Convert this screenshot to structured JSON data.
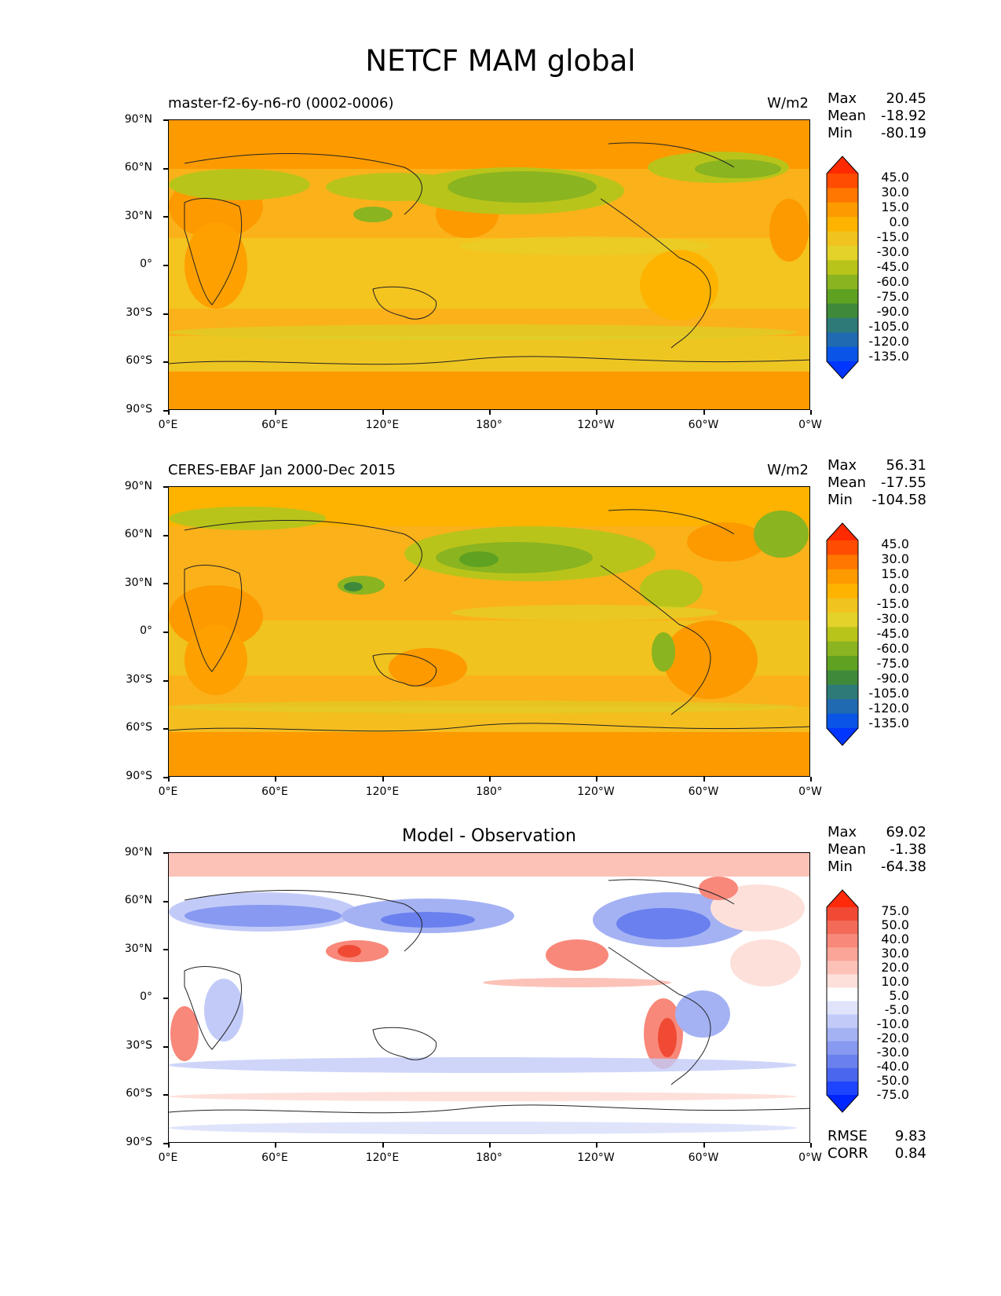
{
  "figure": {
    "title": "NETCF MAM global"
  },
  "axes": {
    "y_ticks": [
      "90°N",
      "60°N",
      "30°N",
      "0°",
      "30°S",
      "60°S",
      "90°S"
    ],
    "x_ticks": [
      "0°E",
      "60°E",
      "120°E",
      "180°",
      "120°W",
      "60°W",
      "0°W"
    ]
  },
  "panels": [
    {
      "title": "master-f2-6y-n6-r0 (0002-0006)",
      "units": "W/m2",
      "stats": {
        "max_label": "Max",
        "max": "20.45",
        "mean_label": "Mean",
        "mean": "-18.92",
        "min_label": "Min",
        "min": "-80.19"
      },
      "colorbar": {
        "labels": [
          "45.0",
          "30.0",
          "15.0",
          "0.0",
          "-15.0",
          "-30.0",
          "-45.0",
          "-60.0",
          "-75.0",
          "-90.0",
          "-105.0",
          "-120.0",
          "-135.0"
        ],
        "colors": [
          "#ff2a00",
          "#ff4c00",
          "#ff7600",
          "#fd9a00",
          "#fdb300",
          "#f0c31e",
          "#e2d22a",
          "#b9c41a",
          "#8ab420",
          "#5fa222",
          "#3e8a3a",
          "#2e7a78",
          "#1f6ab0",
          "#0a55e8",
          "#0036ff"
        ]
      }
    },
    {
      "title": "CERES-EBAF Jan 2000-Dec 2015",
      "units": "W/m2",
      "stats": {
        "max_label": "Max",
        "max": "56.31",
        "mean_label": "Mean",
        "mean": "-17.55",
        "min_label": "Min",
        "min": "-104.58"
      },
      "colorbar": {
        "labels": [
          "45.0",
          "30.0",
          "15.0",
          "0.0",
          "-15.0",
          "-30.0",
          "-45.0",
          "-60.0",
          "-75.0",
          "-90.0",
          "-105.0",
          "-120.0",
          "-135.0"
        ],
        "colors": [
          "#ff2a00",
          "#ff4c00",
          "#ff7600",
          "#fd9a00",
          "#fdb300",
          "#f0c31e",
          "#e2d22a",
          "#b9c41a",
          "#8ab420",
          "#5fa222",
          "#3e8a3a",
          "#2e7a78",
          "#1f6ab0",
          "#0a55e8",
          "#0036ff"
        ]
      }
    },
    {
      "title": "Model - Observation",
      "units": "",
      "stats": {
        "max_label": "Max",
        "max": "69.02",
        "mean_label": "Mean",
        "mean": "-1.38",
        "min_label": "Min",
        "min": "-64.38"
      },
      "colorbar": {
        "labels": [
          "75.0",
          "50.0",
          "40.0",
          "30.0",
          "20.0",
          "10.0",
          "5.0",
          "-5.0",
          "-10.0",
          "-20.0",
          "-30.0",
          "-40.0",
          "-50.0",
          "-75.0"
        ],
        "colors": [
          "#ff2a0a",
          "#f04a35",
          "#f46a58",
          "#f8887a",
          "#fba599",
          "#fcc2b8",
          "#fde0da",
          "#ffffff",
          "#dfe4fb",
          "#c2cbf8",
          "#a4b2f4",
          "#8799f0",
          "#6a80ee",
          "#4a66ee",
          "#1f44ff",
          "#0026ff"
        ]
      },
      "metrics": {
        "rmse_label": "RMSE",
        "rmse": "9.83",
        "corr_label": "CORR",
        "corr": "0.84"
      }
    }
  ]
}
